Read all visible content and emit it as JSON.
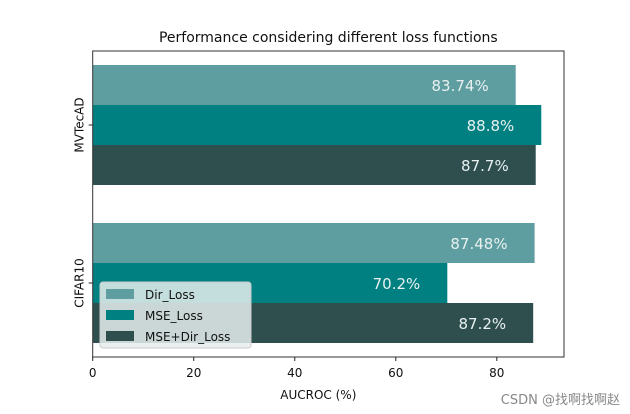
{
  "chart_data": {
    "type": "bar",
    "orientation": "horizontal",
    "title": "Performance considering different loss functions",
    "xlabel": "AUCROC (%)",
    "ylabel": "",
    "xlim": [
      0,
      93.3
    ],
    "xticks": [
      0,
      20,
      40,
      60,
      80
    ],
    "categories": [
      "MVTecAD",
      "CIFAR10"
    ],
    "series": [
      {
        "name": "Dir_Loss",
        "color": "#5f9ea0",
        "values": [
          83.74,
          87.48
        ],
        "labels": [
          "83.74%",
          "87.48%"
        ]
      },
      {
        "name": "MSE_Loss",
        "color": "#008080",
        "values": [
          88.8,
          70.2
        ],
        "labels": [
          "88.8%",
          "70.2%"
        ]
      },
      {
        "name": "MSE+Dir_Loss",
        "color": "#2f4f4f",
        "values": [
          87.7,
          87.2
        ],
        "labels": [
          "87.7%",
          "87.2%"
        ]
      }
    ],
    "grid": false,
    "legend_position": "lower-left",
    "data_label_color": "#e8f0f0"
  },
  "watermark": "CSDN @找啊找啊赵"
}
